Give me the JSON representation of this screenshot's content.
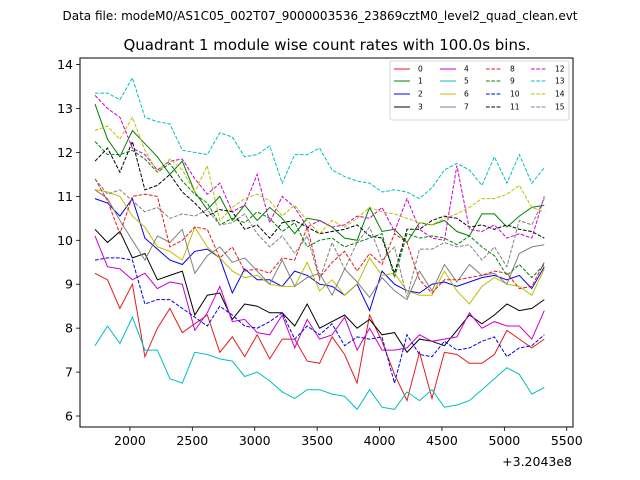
{
  "figure": {
    "suptitle": "Data file: modeM0/AS1C05_002T07_9000003536_23869cztM0_level2_quad_clean.evt"
  },
  "chart_data": {
    "type": "line",
    "title": "Quadrant 1 module wise count rates with 100.0s bins.",
    "xlabel": "",
    "ylabel": "",
    "x_offset_label": "+3.2043e8",
    "xlim": [
      1600,
      5550
    ],
    "ylim": [
      5.75,
      14.15
    ],
    "xticks": [
      2000,
      2500,
      3000,
      3500,
      4000,
      4500,
      5000,
      5500
    ],
    "yticks": [
      6,
      7,
      8,
      9,
      10,
      11,
      12,
      13,
      14
    ],
    "legend_position": "top-right",
    "x": [
      1720,
      1820,
      1920,
      2020,
      2120,
      2220,
      2320,
      2420,
      2520,
      2620,
      2720,
      2820,
      2920,
      3020,
      3120,
      3220,
      3320,
      3420,
      3520,
      3620,
      3720,
      3820,
      3920,
      4020,
      4120,
      4220,
      4320,
      4420,
      4520,
      4620,
      4720,
      4820,
      4920,
      5020,
      5120,
      5220,
      5320
    ],
    "series": [
      {
        "name": "0",
        "color": "#e41a1c",
        "dash": "solid",
        "values": [
          9.25,
          9.1,
          8.45,
          9.0,
          7.35,
          8.0,
          8.45,
          7.9,
          8.1,
          8.3,
          7.45,
          7.8,
          7.35,
          7.85,
          7.3,
          7.75,
          7.75,
          7.25,
          7.2,
          7.8,
          7.4,
          6.75,
          8.3,
          7.7,
          6.95,
          6.35,
          7.45,
          6.4,
          7.45,
          7.4,
          7.2,
          7.2,
          7.4,
          7.95,
          7.75,
          7.55,
          7.75
        ]
      },
      {
        "name": "1",
        "color": "#008000",
        "dash": "solid",
        "values": [
          13.1,
          12.3,
          11.9,
          12.5,
          12.2,
          11.9,
          11.5,
          11.8,
          11.1,
          10.7,
          11.0,
          10.45,
          10.8,
          10.45,
          10.75,
          10.5,
          10.15,
          10.5,
          10.45,
          10.3,
          10.05,
          10.0,
          10.75,
          10.2,
          10.25,
          9.95,
          10.4,
          10.35,
          10.45,
          10.2,
          10.1,
          10.6,
          10.6,
          10.3,
          10.55,
          10.75,
          10.8
        ]
      },
      {
        "name": "2",
        "color": "#0000ee",
        "dash": "solid",
        "values": [
          10.95,
          10.85,
          10.55,
          10.95,
          10.05,
          9.8,
          9.55,
          9.45,
          9.75,
          9.8,
          9.6,
          8.8,
          9.35,
          9.1,
          9.1,
          8.95,
          9.3,
          9.2,
          9.0,
          8.95,
          8.75,
          9.0,
          8.4,
          9.3,
          9.0,
          8.85,
          8.8,
          9.0,
          9.05,
          8.95,
          9.05,
          9.15,
          9.2,
          9.1,
          9.2,
          8.9,
          9.4
        ]
      },
      {
        "name": "3",
        "color": "#000000",
        "dash": "solid",
        "values": [
          10.25,
          9.95,
          10.2,
          9.6,
          9.7,
          9.1,
          9.2,
          9.3,
          8.3,
          8.75,
          8.8,
          8.2,
          8.55,
          8.5,
          8.35,
          8.35,
          8.05,
          8.55,
          8.0,
          8.15,
          8.3,
          8.0,
          8.2,
          7.85,
          7.9,
          7.45,
          7.75,
          7.7,
          7.6,
          7.95,
          8.3,
          8.1,
          8.3,
          8.55,
          8.4,
          8.45,
          8.65
        ]
      },
      {
        "name": "4",
        "color": "#cc00cc",
        "dash": "solid",
        "values": [
          10.1,
          9.4,
          9.35,
          9.1,
          9.25,
          8.9,
          9.05,
          9.0,
          7.95,
          8.35,
          8.95,
          8.15,
          8.2,
          7.9,
          7.85,
          8.3,
          7.55,
          8.2,
          7.75,
          7.85,
          8.25,
          7.5,
          8.0,
          7.5,
          7.5,
          7.55,
          7.85,
          7.7,
          7.75,
          7.8,
          8.35,
          8.0,
          8.15,
          8.05,
          8.05,
          7.75,
          8.4
        ]
      },
      {
        "name": "5",
        "color": "#00bfbf",
        "dash": "solid",
        "values": [
          7.6,
          8.05,
          7.65,
          8.25,
          7.5,
          7.5,
          6.85,
          6.75,
          7.45,
          7.4,
          7.3,
          7.25,
          6.9,
          7.0,
          6.8,
          6.55,
          6.4,
          6.6,
          6.6,
          6.5,
          6.45,
          6.15,
          6.6,
          6.2,
          6.15,
          6.55,
          6.35,
          6.6,
          6.2,
          6.25,
          6.35,
          6.6,
          6.85,
          7.1,
          6.95,
          6.5,
          6.65
        ]
      },
      {
        "name": "6",
        "color": "#bfbf00",
        "dash": "solid",
        "values": [
          11.15,
          11.1,
          11.0,
          10.55,
          10.3,
          9.85,
          9.75,
          9.55,
          10.3,
          9.85,
          9.6,
          9.3,
          9.15,
          9.2,
          9.0,
          8.95,
          8.95,
          9.5,
          8.85,
          9.1,
          8.75,
          9.0,
          9.6,
          9.2,
          9.25,
          8.85,
          8.75,
          8.75,
          9.3,
          8.85,
          8.55,
          8.95,
          9.15,
          9.0,
          8.95,
          8.75,
          9.35
        ]
      },
      {
        "name": "7",
        "color": "#808080",
        "dash": "solid",
        "values": [
          11.15,
          10.95,
          10.45,
          10.0,
          9.55,
          10.1,
          9.95,
          10.25,
          9.25,
          9.65,
          9.85,
          9.5,
          9.6,
          9.3,
          9.0,
          9.55,
          8.95,
          9.15,
          9.25,
          8.75,
          9.35,
          9.05,
          8.7,
          9.15,
          8.85,
          8.65,
          9.3,
          8.85,
          9.45,
          9.05,
          9.45,
          9.2,
          9.25,
          9.0,
          9.7,
          9.85,
          9.9
        ]
      },
      {
        "name": "8",
        "color": "#e41a1c",
        "dash": "dashed",
        "values": [
          11.4,
          10.9,
          10.15,
          11.0,
          11.05,
          11.0,
          9.85,
          10.0,
          10.3,
          10.25,
          9.6,
          9.85,
          9.3,
          9.35,
          9.25,
          9.6,
          9.55,
          10.3,
          9.15,
          9.5,
          9.75,
          9.3,
          9.7,
          9.45,
          10.15,
          9.95,
          9.1,
          8.8,
          9.1,
          9.1,
          9.15,
          9.2,
          9.3,
          9.25,
          8.9,
          8.95,
          9.5
        ]
      },
      {
        "name": "9",
        "color": "#008000",
        "dash": "dashed",
        "values": [
          12.25,
          11.95,
          11.95,
          12.05,
          11.85,
          11.55,
          11.75,
          11.35,
          11.05,
          10.85,
          10.35,
          10.5,
          10.4,
          10.65,
          10.5,
          10.2,
          10.4,
          9.85,
          10.0,
          10.05,
          9.85,
          9.95,
          10.05,
          10.15,
          9.15,
          10.15,
          10.05,
          10.1,
          10.05,
          9.9,
          10.1,
          9.85,
          9.65,
          9.2,
          9.45,
          9.15,
          9.45
        ]
      },
      {
        "name": "10",
        "color": "#0000ee",
        "dash": "dashed",
        "values": [
          9.55,
          9.6,
          9.6,
          9.55,
          8.55,
          8.65,
          8.65,
          8.45,
          8.25,
          8.05,
          8.5,
          8.3,
          8.05,
          8.0,
          8.15,
          8.35,
          7.75,
          8.05,
          7.85,
          8.1,
          7.6,
          7.8,
          7.75,
          7.8,
          6.75,
          7.85,
          7.4,
          7.35,
          7.7,
          7.5,
          7.55,
          7.7,
          7.8,
          7.35,
          7.55,
          7.6,
          7.85
        ]
      },
      {
        "name": "11",
        "color": "#000000",
        "dash": "dashed",
        "values": [
          11.8,
          12.1,
          11.55,
          12.25,
          11.15,
          11.25,
          11.5,
          11.1,
          10.85,
          10.55,
          10.7,
          10.65,
          10.25,
          10.35,
          10.05,
          10.4,
          10.45,
          10.3,
          10.15,
          10.2,
          10.25,
          10.35,
          10.1,
          10.05,
          9.25,
          10.25,
          10.25,
          10.45,
          10.55,
          10.5,
          10.3,
          10.35,
          10.25,
          10.35,
          10.25,
          10.2,
          10.05
        ]
      },
      {
        "name": "12",
        "color": "#cc00cc",
        "dash": "dashed",
        "values": [
          13.3,
          13.0,
          12.8,
          12.1,
          11.95,
          11.6,
          11.8,
          11.85,
          11.4,
          11.05,
          11.3,
          10.65,
          10.8,
          11.5,
          10.4,
          11.0,
          10.75,
          10.3,
          10.45,
          10.3,
          10.35,
          10.55,
          10.5,
          10.75,
          10.2,
          10.95,
          10.25,
          10.05,
          10.0,
          11.7,
          10.25,
          10.2,
          10.35,
          10.05,
          10.15,
          10.05,
          11.0
        ]
      },
      {
        "name": "13",
        "color": "#00bfbf",
        "dash": "dashed",
        "values": [
          13.35,
          13.35,
          13.2,
          13.7,
          12.8,
          12.7,
          12.65,
          12.05,
          12.0,
          11.95,
          12.45,
          12.35,
          11.9,
          11.95,
          12.15,
          11.3,
          11.95,
          11.95,
          12.1,
          11.6,
          11.45,
          11.35,
          11.3,
          11.1,
          11.15,
          11.1,
          10.95,
          11.2,
          11.6,
          11.75,
          11.6,
          11.25,
          11.9,
          11.3,
          11.95,
          11.3,
          11.65
        ]
      },
      {
        "name": "14",
        "color": "#bfbf00",
        "dash": "dashed",
        "values": [
          12.5,
          12.6,
          12.3,
          12.8,
          12.05,
          11.55,
          11.85,
          11.6,
          11.1,
          11.7,
          10.45,
          10.75,
          10.95,
          11.05,
          10.9,
          10.55,
          10.8,
          10.45,
          10.15,
          10.45,
          10.3,
          10.5,
          10.75,
          10.65,
          10.6,
          10.5,
          10.4,
          10.35,
          10.5,
          10.6,
          10.75,
          10.95,
          10.95,
          11.05,
          11.25,
          10.75,
          10.65
        ]
      },
      {
        "name": "15",
        "color": "#808080",
        "dash": "dashed",
        "values": [
          11.4,
          11.05,
          11.15,
          10.9,
          10.65,
          10.75,
          10.5,
          10.6,
          10.55,
          10.7,
          10.35,
          10.4,
          10.6,
          10.15,
          9.85,
          10.1,
          9.7,
          10.1,
          9.1,
          9.95,
          9.35,
          9.95,
          10.3,
          9.55,
          9.85,
          8.7,
          9.8,
          9.8,
          9.95,
          9.85,
          9.9,
          9.55,
          9.85,
          9.4,
          10.45,
          10.35,
          10.95
        ]
      }
    ]
  }
}
